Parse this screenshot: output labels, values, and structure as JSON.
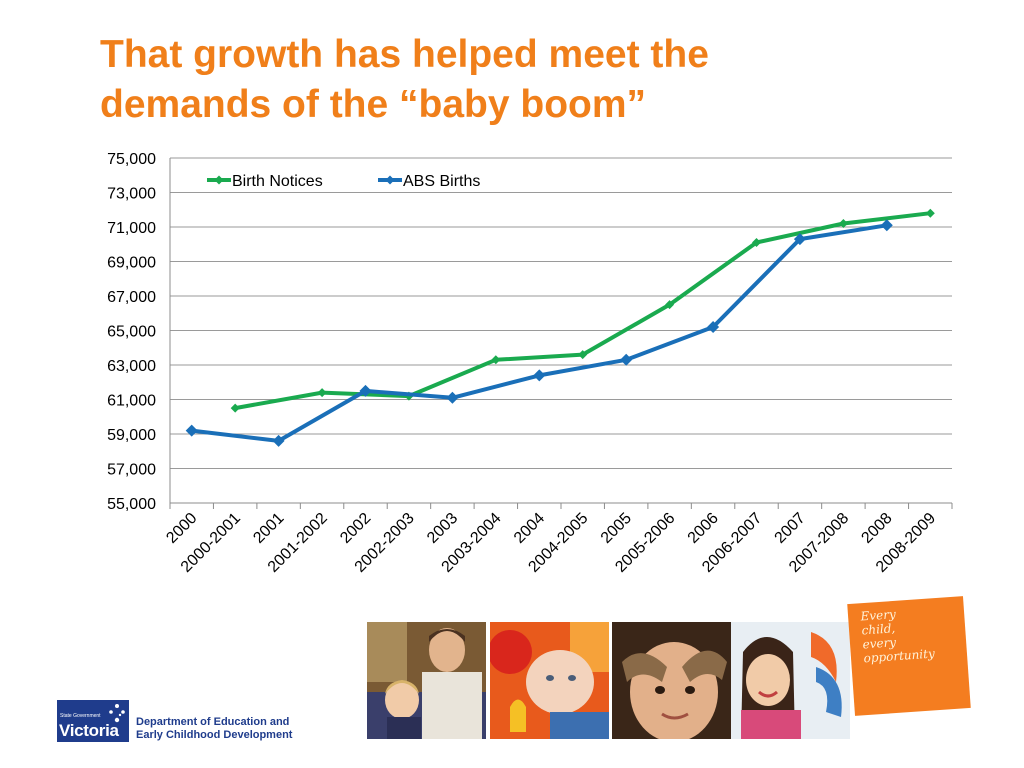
{
  "slide": {
    "title": "That growth has helped meet the demands of the “baby boom”"
  },
  "chart_data": {
    "type": "line",
    "title": "",
    "xlabel": "",
    "ylabel": "",
    "categories": [
      "2000",
      "2000-2001",
      "2001",
      "2001-2002",
      "2002",
      "2002-2003",
      "2003",
      "2003-2004",
      "2004",
      "2004-2005",
      "2005",
      "2005-2006",
      "2006",
      "2006-2007",
      "2007",
      "2007-2008",
      "2008",
      "2008-2009"
    ],
    "ylim": [
      55000,
      75000
    ],
    "yticks": [
      55000,
      57000,
      59000,
      61000,
      63000,
      65000,
      67000,
      69000,
      71000,
      73000,
      75000
    ],
    "ytick_labels": [
      "55,000",
      "57,000",
      "59,000",
      "61,000",
      "63,000",
      "65,000",
      "67,000",
      "69,000",
      "71,000",
      "73,000",
      "75,000"
    ],
    "grid": true,
    "legend_position": "top-left",
    "series": [
      {
        "name": "Birth Notices",
        "color": "#1aaa4f",
        "points": [
          {
            "x": "2000-2001",
            "y": 60500
          },
          {
            "x": "2001-2002",
            "y": 61400
          },
          {
            "x": "2002-2003",
            "y": 61200
          },
          {
            "x": "2003-2004",
            "y": 63300
          },
          {
            "x": "2004-2005",
            "y": 63600
          },
          {
            "x": "2005-2006",
            "y": 66500
          },
          {
            "x": "2006-2007",
            "y": 70100
          },
          {
            "x": "2007-2008",
            "y": 71200
          },
          {
            "x": "2008-2009",
            "y": 71800
          }
        ]
      },
      {
        "name": "ABS Births",
        "color": "#1a6fb8",
        "points": [
          {
            "x": "2000",
            "y": 59200
          },
          {
            "x": "2001",
            "y": 58600
          },
          {
            "x": "2002",
            "y": 61500
          },
          {
            "x": "2003",
            "y": 61100
          },
          {
            "x": "2004",
            "y": 62400
          },
          {
            "x": "2005",
            "y": 63300
          },
          {
            "x": "2006",
            "y": 65200
          },
          {
            "x": "2007",
            "y": 70300
          },
          {
            "x": "2008",
            "y": 71100
          }
        ]
      }
    ]
  },
  "badge": {
    "color": "#f47d20",
    "lines": [
      "Every",
      "child,",
      "every",
      "opportunity"
    ]
  },
  "footer": {
    "logo_small": "State Government",
    "logo_big": "Victoria",
    "dept_line1": "Department of Education and",
    "dept_line2": "Early Childhood Development"
  }
}
